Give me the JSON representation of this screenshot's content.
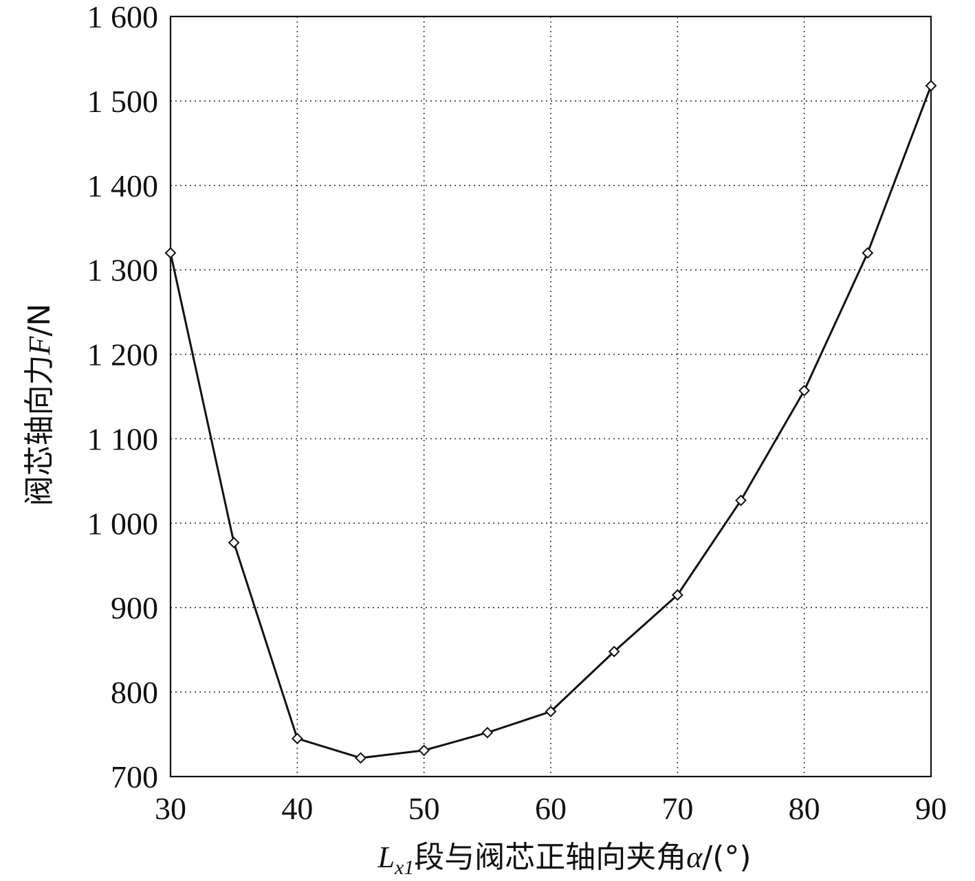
{
  "chart_data": {
    "type": "line",
    "title": "",
    "xlabel": {
      "var": "L",
      "sub": "x1",
      "text": "段与阀芯正轴向夹角",
      "greek": "α",
      "unit": "/(°)"
    },
    "ylabel": {
      "text": "阀芯轴向力",
      "var": "F",
      "unit": "/N"
    },
    "xlim": [
      30,
      90
    ],
    "ylim": [
      700,
      1600
    ],
    "xticks": [
      30,
      40,
      50,
      60,
      70,
      80,
      90
    ],
    "yticks": [
      700,
      800,
      900,
      1000,
      1100,
      1200,
      1300,
      1400,
      1500,
      1600
    ],
    "ytick_labels": [
      "700",
      "800",
      "900",
      "1 000",
      "1 100",
      "1 200",
      "1 300",
      "1 400",
      "1 500",
      "1 600"
    ],
    "grid": true,
    "marker": "diamond",
    "series": [
      {
        "x": [
          30,
          35,
          40,
          45,
          50,
          55,
          60,
          65,
          70,
          75,
          80,
          85,
          90
        ],
        "y": [
          1320,
          977,
          745,
          722,
          731,
          752,
          777,
          848,
          915,
          1027,
          1157,
          1320,
          1518
        ]
      }
    ]
  }
}
